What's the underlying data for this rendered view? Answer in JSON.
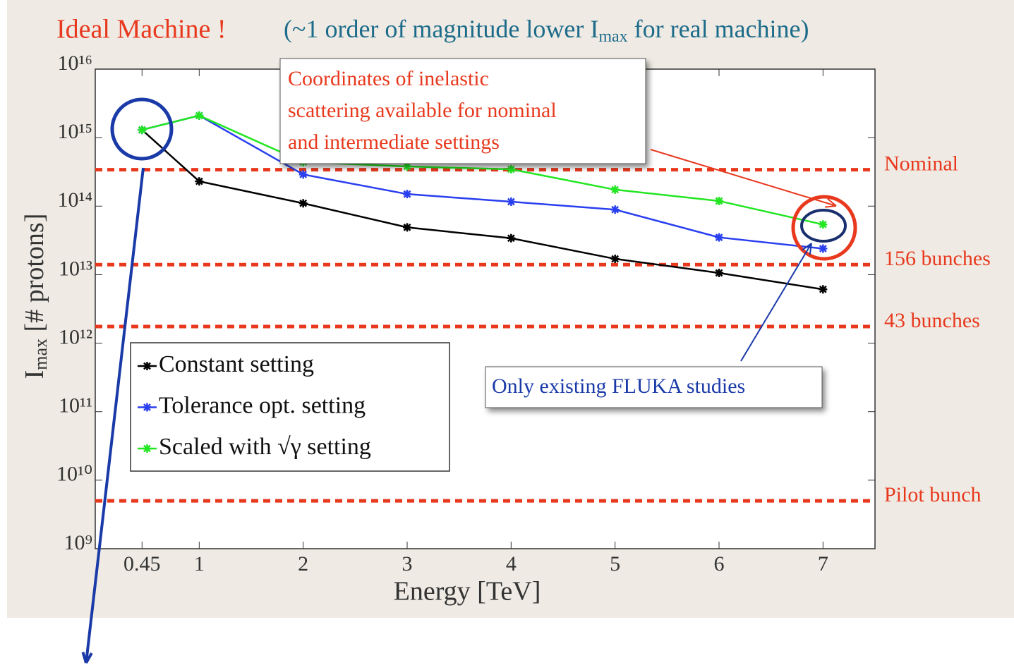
{
  "chart_data": {
    "type": "line",
    "title": "Ideal Machine !",
    "subtitle": [
      "(~1 order of magnitude lower I",
      "max",
      " for real machine)"
    ],
    "xlabel": "Energy [TeV]",
    "ylabel": [
      "I",
      "max",
      " [# protons]"
    ],
    "x": [
      0.45,
      1,
      2,
      3,
      4,
      5,
      6,
      7
    ],
    "series": [
      {
        "name": "Constant setting",
        "color": "#000000",
        "values": [
          1300000000000000.0,
          230000000000000.0,
          110000000000000.0,
          49000000000000.0,
          34000000000000.0,
          17000000000000.0,
          10600000000000.0,
          6100000000000.0
        ]
      },
      {
        "name": "Tolerance opt. setting",
        "color": "#2a3fef",
        "values": [
          1300000000000000.0,
          2100000000000000.0,
          290000000000000.0,
          150000000000000.0,
          116000000000000.0,
          89000000000000.0,
          35000000000000.0,
          24000000000000.0
        ]
      },
      {
        "name": "Scaled with √γ setting",
        "color": "#22e622",
        "values": [
          1300000000000000.0,
          2100000000000000.0,
          440000000000000.0,
          380000000000000.0,
          345000000000000.0,
          174000000000000.0,
          119000000000000.0,
          54000000000000.0
        ]
      }
    ],
    "reference_lines": [
      {
        "label": "Nominal",
        "value": 340000000000000.0
      },
      {
        "label": "156 bunches",
        "value": 14000000000000.0
      },
      {
        "label": "43 bunches",
        "value": 1750000000000.0
      },
      {
        "label": "Pilot bunch",
        "value": 5000000000.0
      }
    ],
    "annotations": [
      [
        "Coordinates of inelastic",
        "scattering available for nominal",
        "and intermediate settings"
      ],
      [
        "Only existing FLUKA studies"
      ]
    ],
    "xlim": [
      0,
      7.5
    ],
    "xticks": [
      0.45,
      1,
      2,
      3,
      4,
      5,
      6,
      7
    ],
    "ylim": [
      1000000000.0,
      1e+16
    ],
    "log_y": true,
    "yticks": [
      {
        "value": 1000000000.0,
        "label": "10⁹"
      },
      {
        "value": 10000000000.0,
        "label": "10¹⁰"
      },
      {
        "value": 100000000000.0,
        "label": "10¹¹"
      },
      {
        "value": 1000000000000.0,
        "label": "10¹²"
      },
      {
        "value": 10000000000000.0,
        "label": "10¹³"
      },
      {
        "value": 100000000000000.0,
        "label": "10¹⁴"
      },
      {
        "value": 1000000000000000.0,
        "label": "10¹⁵"
      },
      {
        "value": 1e+16,
        "label": "10¹⁶"
      }
    ],
    "legend": "lower left",
    "reference_color": "#e8391e"
  }
}
